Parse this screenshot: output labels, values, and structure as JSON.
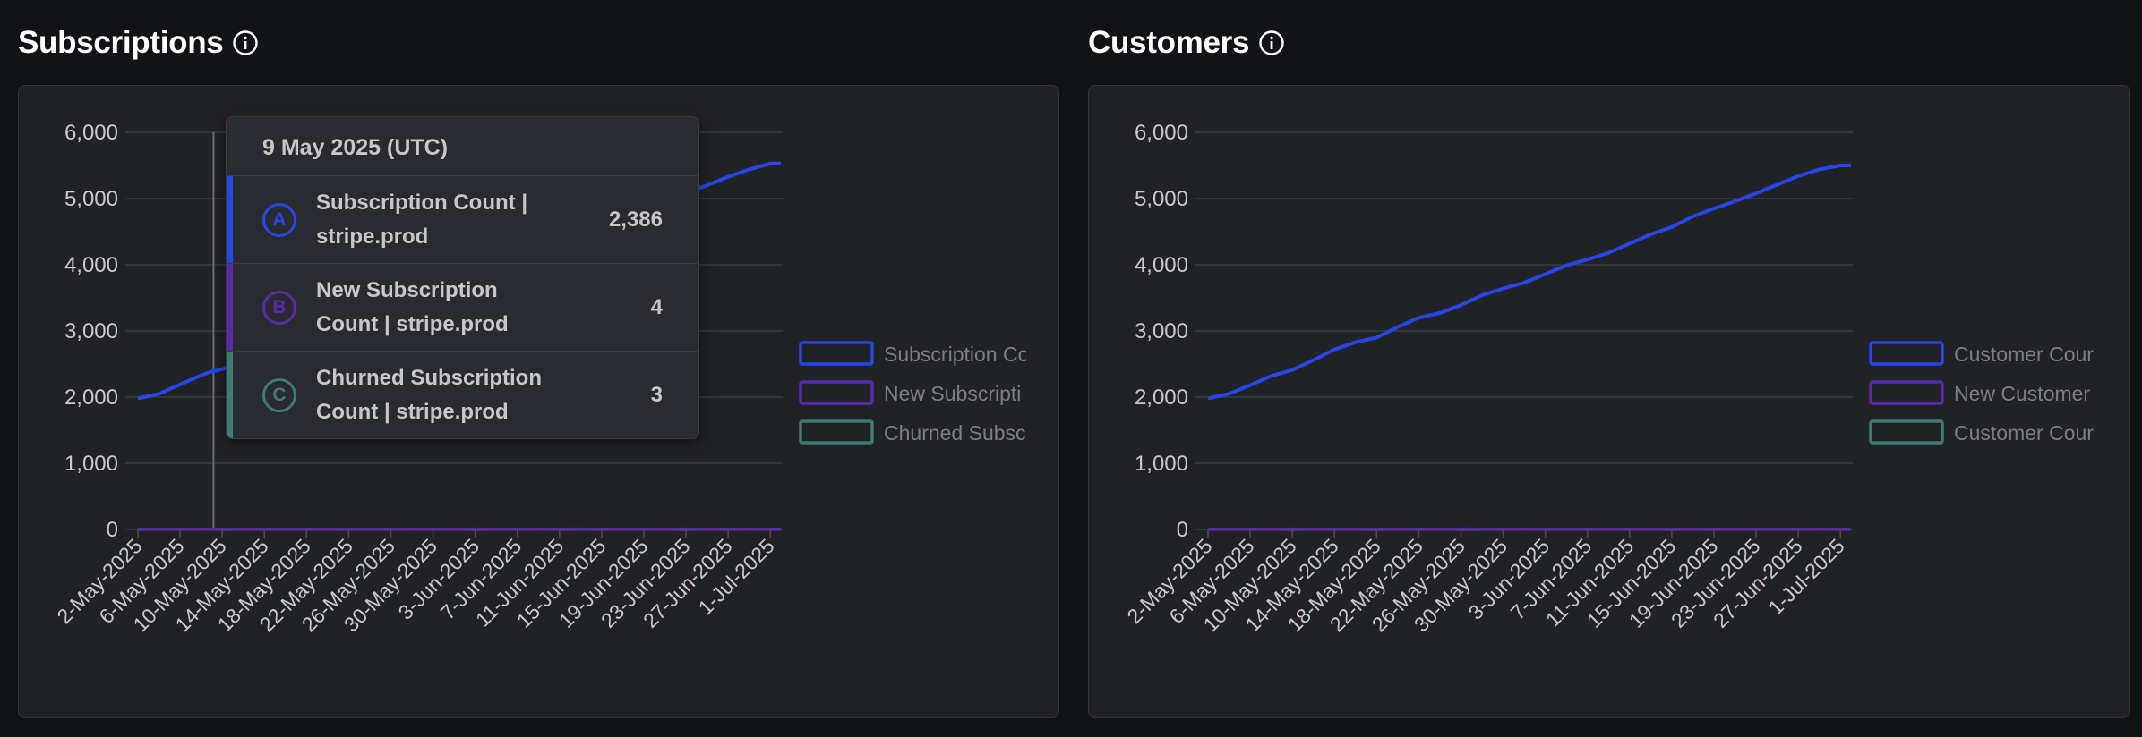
{
  "colors": {
    "series_a": "#2646e8",
    "series_b": "#5a2aa8",
    "series_c": "#3f7c74",
    "grid": "#3b3d42",
    "axis": "#4a4c52"
  },
  "info_icon": "info-circle-icon",
  "subscriptions": {
    "title": "Subscriptions",
    "legend": [
      "Subscription Co",
      "New Subscripti",
      "Churned Subsc"
    ],
    "tooltip": {
      "date": "9 May 2025 (UTC)",
      "rows": [
        {
          "badge": "A",
          "label_line1": "Subscription Count |",
          "label_line2": "stripe.prod",
          "value": "2,386"
        },
        {
          "badge": "B",
          "label_line1": "New Subscription",
          "label_line2": "Count | stripe.prod",
          "value": "4"
        },
        {
          "badge": "C",
          "label_line1": "Churned Subscription",
          "label_line2": "Count | stripe.prod",
          "value": "3"
        }
      ]
    }
  },
  "customers": {
    "title": "Customers",
    "legend": [
      "Customer Cour",
      "New Customer",
      "Customer Cour"
    ]
  },
  "chart_data": [
    {
      "type": "line",
      "x_ticks": [
        "2-May-2025",
        "6-May-2025",
        "10-May-2025",
        "14-May-2025",
        "18-May-2025",
        "22-May-2025",
        "26-May-2025",
        "30-May-2025",
        "3-Jun-2025",
        "7-Jun-2025",
        "11-Jun-2025",
        "15-Jun-2025",
        "19-Jun-2025",
        "23-Jun-2025",
        "27-Jun-2025",
        "1-Jul-2025"
      ],
      "y_ticks": [
        "0",
        "1,000",
        "2,000",
        "3,000",
        "4,000",
        "5,000",
        "6,000"
      ],
      "ylim": [
        0,
        6000
      ],
      "x": [
        "2-May-2025",
        "4-May-2025",
        "6-May-2025",
        "8-May-2025",
        "9-May-2025",
        "10-May-2025",
        "12-May-2025",
        "14-May-2025",
        "16-May-2025",
        "18-May-2025",
        "20-May-2025",
        "22-May-2025",
        "24-May-2025",
        "26-May-2025",
        "28-May-2025",
        "30-May-2025",
        "1-Jun-2025",
        "3-Jun-2025",
        "5-Jun-2025",
        "7-Jun-2025",
        "9-Jun-2025",
        "11-Jun-2025",
        "13-Jun-2025",
        "15-Jun-2025",
        "17-Jun-2025",
        "19-Jun-2025",
        "21-Jun-2025",
        "23-Jun-2025",
        "25-Jun-2025",
        "27-Jun-2025",
        "29-Jun-2025",
        "1-Jul-2025",
        "2-Jul-2025"
      ],
      "series": [
        {
          "name": "Subscription Co",
          "values": [
            1980,
            2050,
            2190,
            2330,
            2386,
            2420,
            2560,
            2700,
            2820,
            2920,
            3050,
            3180,
            3260,
            3380,
            3520,
            3640,
            3730,
            3860,
            3990,
            4110,
            4240,
            4370,
            4500,
            4620,
            4740,
            4860,
            4970,
            5090,
            5200,
            5330,
            5440,
            5530,
            5530
          ]
        },
        {
          "name": "New Subscripti",
          "values": [
            4,
            5,
            3,
            4,
            4,
            5,
            4,
            3,
            5,
            4,
            4,
            3,
            5,
            4,
            4,
            3,
            4,
            5,
            4,
            4,
            3,
            4,
            5,
            4,
            4,
            3,
            4,
            5,
            4,
            4,
            3,
            4,
            4
          ]
        },
        {
          "name": "Churned Subsc",
          "values": [
            2,
            3,
            2,
            3,
            3,
            2,
            3,
            2,
            3,
            2,
            3,
            2,
            3,
            2,
            3,
            2,
            3,
            2,
            3,
            2,
            3,
            2,
            3,
            2,
            3,
            2,
            3,
            2,
            3,
            2,
            3,
            2,
            2
          ]
        }
      ],
      "legend": "right",
      "grid": true,
      "cursor_x": "9-May-2025"
    },
    {
      "type": "line",
      "x_ticks": [
        "2-May-2025",
        "6-May-2025",
        "10-May-2025",
        "14-May-2025",
        "18-May-2025",
        "22-May-2025",
        "26-May-2025",
        "30-May-2025",
        "3-Jun-2025",
        "7-Jun-2025",
        "11-Jun-2025",
        "15-Jun-2025",
        "19-Jun-2025",
        "23-Jun-2025",
        "27-Jun-2025",
        "1-Jul-2025"
      ],
      "y_ticks": [
        "0",
        "1,000",
        "2,000",
        "3,000",
        "4,000",
        "5,000",
        "6,000"
      ],
      "ylim": [
        0,
        6000
      ],
      "x": [
        "2-May-2025",
        "4-May-2025",
        "6-May-2025",
        "8-May-2025",
        "10-May-2025",
        "12-May-2025",
        "14-May-2025",
        "16-May-2025",
        "18-May-2025",
        "20-May-2025",
        "22-May-2025",
        "24-May-2025",
        "26-May-2025",
        "28-May-2025",
        "30-May-2025",
        "1-Jun-2025",
        "3-Jun-2025",
        "5-Jun-2025",
        "7-Jun-2025",
        "9-Jun-2025",
        "11-Jun-2025",
        "13-Jun-2025",
        "15-Jun-2025",
        "17-Jun-2025",
        "19-Jun-2025",
        "21-Jun-2025",
        "23-Jun-2025",
        "25-Jun-2025",
        "27-Jun-2025",
        "29-Jun-2025",
        "1-Jul-2025",
        "2-Jul-2025"
      ],
      "series": [
        {
          "name": "Customer Cour",
          "values": [
            1980,
            2050,
            2180,
            2320,
            2410,
            2560,
            2720,
            2830,
            2900,
            3060,
            3200,
            3270,
            3390,
            3540,
            3640,
            3730,
            3860,
            3990,
            4080,
            4180,
            4320,
            4460,
            4570,
            4730,
            4850,
            4960,
            5080,
            5210,
            5340,
            5440,
            5500,
            5500
          ]
        },
        {
          "name": "New Customer",
          "values": [
            4,
            5,
            4,
            3,
            5,
            4,
            4,
            3,
            5,
            4,
            4,
            3,
            5,
            4,
            4,
            3,
            4,
            5,
            4,
            4,
            3,
            4,
            5,
            4,
            4,
            3,
            4,
            5,
            4,
            4,
            3,
            4
          ]
        },
        {
          "name": "Customer Cour",
          "values": [
            2,
            3,
            2,
            3,
            2,
            3,
            2,
            3,
            2,
            3,
            2,
            3,
            2,
            3,
            2,
            3,
            2,
            3,
            2,
            3,
            2,
            3,
            2,
            3,
            2,
            3,
            2,
            3,
            2,
            3,
            2,
            2
          ]
        }
      ],
      "legend": "right",
      "grid": true
    }
  ]
}
